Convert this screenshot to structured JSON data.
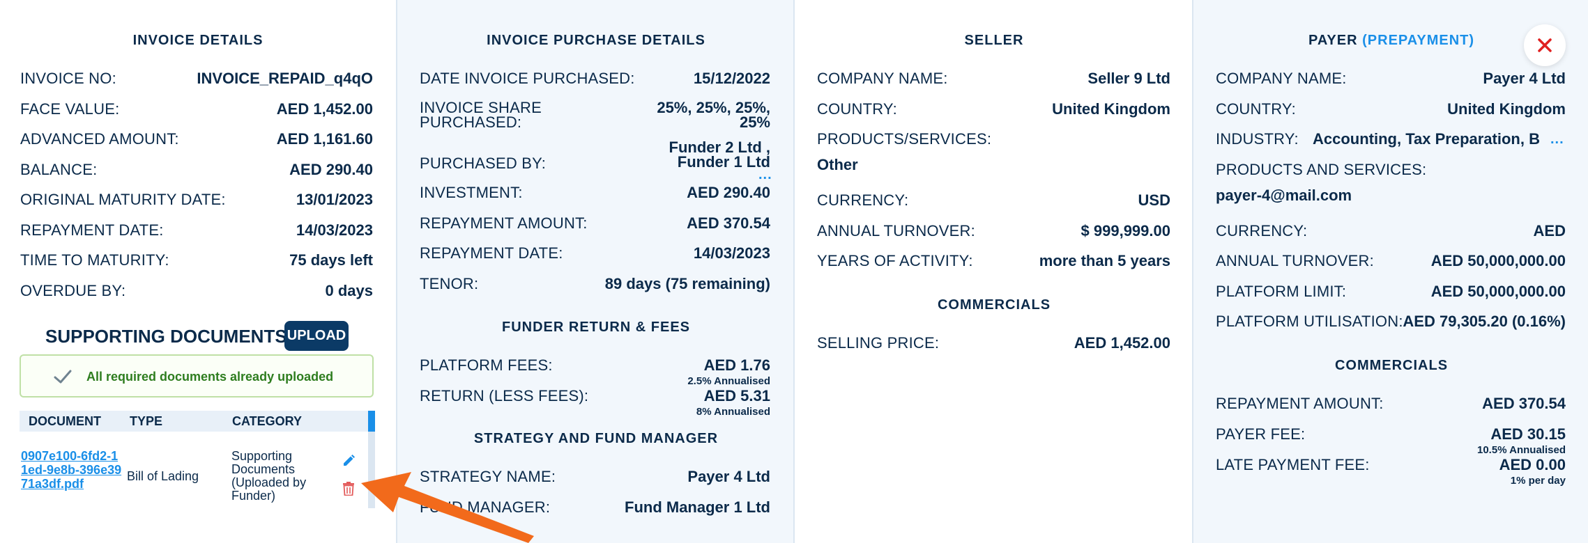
{
  "invoice_details": {
    "title": "INVOICE DETAILS",
    "rows": [
      {
        "label": "INVOICE NO:",
        "value": "INVOICE_REPAID_q4qO"
      },
      {
        "label": "FACE VALUE:",
        "value": "AED 1,452.00"
      },
      {
        "label": "ADVANCED AMOUNT:",
        "value": "AED 1,161.60"
      },
      {
        "label": "BALANCE:",
        "value": "AED 290.40"
      },
      {
        "label": "ORIGINAL MATURITY DATE:",
        "value": "13/01/2023"
      },
      {
        "label": "REPAYMENT DATE:",
        "value": "14/03/2023"
      },
      {
        "label": "TIME TO MATURITY:",
        "value": "75 days left"
      },
      {
        "label": "OVERDUE BY:",
        "value": "0 days"
      }
    ]
  },
  "supporting_documents": {
    "title": "SUPPORTING DOCUMENTS",
    "upload_label": "UPLOAD",
    "notice": "All required documents already uploaded",
    "columns": [
      "DOCUMENT",
      "TYPE",
      "CATEGORY"
    ],
    "rows": [
      {
        "document": "0907e100-6fd2-11ed-9e8b-396e3971a3df.pdf",
        "type": "Bill of Lading",
        "category": "Supporting Documents (Uploaded by Funder)"
      }
    ]
  },
  "invoice_purchase": {
    "title": "INVOICE PURCHASE DETAILS",
    "rows": [
      {
        "label": "DATE INVOICE PURCHASED:",
        "value": "15/12/2022"
      },
      {
        "label_l1": "INVOICE SHARE",
        "label_l2": "PURCHASED:",
        "value_l1": "25%, 25%, 25%,",
        "value_l2": "25%"
      },
      {
        "label": "PURCHASED BY:",
        "value_l1": "Funder 2 Ltd ,",
        "value_l2": "Funder 1 Ltd",
        "more": "..."
      },
      {
        "label": "INVESTMENT:",
        "value": "AED 290.40"
      },
      {
        "label": "REPAYMENT AMOUNT:",
        "value": "AED 370.54"
      },
      {
        "label": "REPAYMENT DATE:",
        "value": "14/03/2023"
      },
      {
        "label": "TENOR:",
        "value": "89 days (75 remaining)"
      }
    ],
    "funder_return": {
      "title": "FUNDER RETURN & FEES",
      "platform_fees_label": "PLATFORM FEES:",
      "platform_fees_value": "AED 1.76",
      "platform_fees_sub": "2.5% Annualised",
      "return_label": "RETURN (LESS FEES):",
      "return_value": "AED 5.31",
      "return_sub": "8% Annualised"
    },
    "strategy": {
      "title": "STRATEGY AND FUND MANAGER",
      "strategy_label": "STRATEGY NAME:",
      "strategy_value": "Payer 4 Ltd",
      "manager_label": "FUND MANAGER:",
      "manager_value": "Fund Manager 1 Ltd"
    }
  },
  "seller": {
    "title": "SELLER",
    "company_label": "COMPANY NAME:",
    "company_value": "Seller 9 Ltd",
    "country_label": "COUNTRY:",
    "country_value": "United Kingdom",
    "products_label": "PRODUCTS/SERVICES:",
    "products_value": "Other",
    "currency_label": "CURRENCY:",
    "currency_value": "USD",
    "turnover_label": "ANNUAL TURNOVER:",
    "turnover_value": "$ 999,999.00",
    "years_label": "YEARS OF ACTIVITY:",
    "years_value": "more than 5 years",
    "commercials_title": "COMMERCIALS",
    "selling_price_label": "SELLING PRICE:",
    "selling_price_value": "AED 1,452.00"
  },
  "payer": {
    "title": "PAYER",
    "title_accent": "(PREPAYMENT)",
    "company_label": "COMPANY NAME:",
    "company_value": "Payer 4 Ltd",
    "country_label": "COUNTRY:",
    "country_value": "United Kingdom",
    "industry_label": "INDUSTRY:",
    "industry_value": "Accounting, Tax Preparation, B",
    "industry_more": "...",
    "products_label": "PRODUCTS AND SERVICES:",
    "products_value": "payer-4@mail.com",
    "currency_label": "CURRENCY:",
    "currency_value": "AED",
    "turnover_label": "ANNUAL TURNOVER:",
    "turnover_value": "AED 50,000,000.00",
    "limit_label": "PLATFORM LIMIT:",
    "limit_value": "AED 50,000,000.00",
    "util_label": "PLATFORM UTILISATION:",
    "util_value": "AED 79,305.20 (0.16%)",
    "commercials_title": "COMMERCIALS",
    "repayment_label": "REPAYMENT AMOUNT:",
    "repayment_value": "AED 370.54",
    "payer_fee_label": "PAYER FEE:",
    "payer_fee_value": "AED 30.15",
    "payer_fee_sub": "10.5% Annualised",
    "late_fee_label": "LATE PAYMENT FEE:",
    "late_fee_value": "AED 0.00",
    "late_fee_sub": "1% per day"
  },
  "colors": {
    "navy": "#0b2a4a",
    "accent": "#1a8fe8",
    "success": "#2e7d1f",
    "danger": "#e02020",
    "arrow": "#f26a1b"
  }
}
